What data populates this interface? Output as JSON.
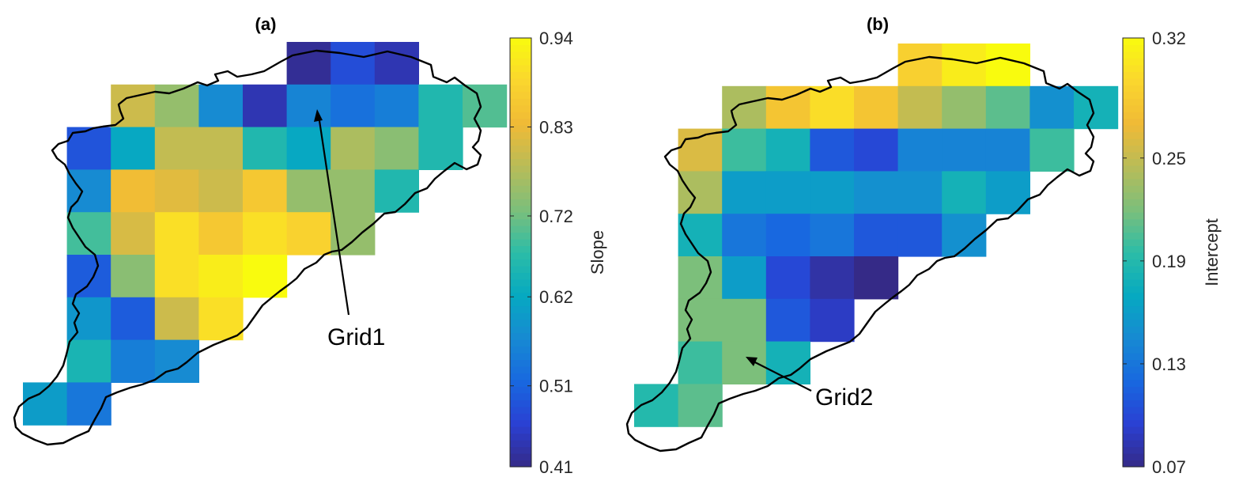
{
  "chart_data": [
    {
      "type": "heatmap",
      "title": "(a)",
      "colorbar": {
        "label": "Slope",
        "ticks": [
          "0.41",
          "0.51",
          "0.62",
          "0.72",
          "0.83",
          "0.94"
        ],
        "range": [
          0.41,
          0.94
        ]
      },
      "colormap": "parula",
      "annotation": {
        "text": "Grid1",
        "target_cell": [
          1,
          6
        ]
      },
      "cells": [
        {
          "row": 0,
          "col": 6,
          "value": 0.42
        },
        {
          "row": 0,
          "col": 7,
          "value": 0.48
        },
        {
          "row": 0,
          "col": 8,
          "value": 0.44
        },
        {
          "row": 1,
          "col": 2,
          "value": 0.8
        },
        {
          "row": 1,
          "col": 3,
          "value": 0.75
        },
        {
          "row": 1,
          "col": 4,
          "value": 0.57
        },
        {
          "row": 1,
          "col": 5,
          "value": 0.44
        },
        {
          "row": 1,
          "col": 6,
          "value": 0.56
        },
        {
          "row": 1,
          "col": 7,
          "value": 0.53
        },
        {
          "row": 1,
          "col": 8,
          "value": 0.55
        },
        {
          "row": 1,
          "col": 9,
          "value": 0.66
        },
        {
          "row": 1,
          "col": 10,
          "value": 0.7
        },
        {
          "row": 2,
          "col": 1,
          "value": 0.49
        },
        {
          "row": 2,
          "col": 2,
          "value": 0.62
        },
        {
          "row": 2,
          "col": 3,
          "value": 0.79
        },
        {
          "row": 2,
          "col": 4,
          "value": 0.79
        },
        {
          "row": 2,
          "col": 5,
          "value": 0.66
        },
        {
          "row": 2,
          "col": 6,
          "value": 0.62
        },
        {
          "row": 2,
          "col": 7,
          "value": 0.77
        },
        {
          "row": 2,
          "col": 8,
          "value": 0.74
        },
        {
          "row": 2,
          "col": 9,
          "value": 0.66
        },
        {
          "row": 3,
          "col": 1,
          "value": 0.57
        },
        {
          "row": 3,
          "col": 2,
          "value": 0.84
        },
        {
          "row": 3,
          "col": 3,
          "value": 0.82
        },
        {
          "row": 3,
          "col": 4,
          "value": 0.8
        },
        {
          "row": 3,
          "col": 5,
          "value": 0.86
        },
        {
          "row": 3,
          "col": 6,
          "value": 0.75
        },
        {
          "row": 3,
          "col": 7,
          "value": 0.75
        },
        {
          "row": 3,
          "col": 8,
          "value": 0.66
        },
        {
          "row": 4,
          "col": 1,
          "value": 0.69
        },
        {
          "row": 4,
          "col": 2,
          "value": 0.81
        },
        {
          "row": 4,
          "col": 3,
          "value": 0.9
        },
        {
          "row": 4,
          "col": 4,
          "value": 0.86
        },
        {
          "row": 4,
          "col": 5,
          "value": 0.9
        },
        {
          "row": 4,
          "col": 6,
          "value": 0.88
        },
        {
          "row": 4,
          "col": 7,
          "value": 0.75
        },
        {
          "row": 5,
          "col": 1,
          "value": 0.5
        },
        {
          "row": 5,
          "col": 2,
          "value": 0.74
        },
        {
          "row": 5,
          "col": 3,
          "value": 0.9
        },
        {
          "row": 5,
          "col": 4,
          "value": 0.92
        },
        {
          "row": 5,
          "col": 5,
          "value": 0.94
        },
        {
          "row": 6,
          "col": 1,
          "value": 0.59
        },
        {
          "row": 6,
          "col": 2,
          "value": 0.5
        },
        {
          "row": 6,
          "col": 3,
          "value": 0.8
        },
        {
          "row": 6,
          "col": 4,
          "value": 0.9
        },
        {
          "row": 7,
          "col": 1,
          "value": 0.65
        },
        {
          "row": 7,
          "col": 2,
          "value": 0.55
        },
        {
          "row": 7,
          "col": 3,
          "value": 0.57
        },
        {
          "row": 8,
          "col": 0,
          "value": 0.6
        },
        {
          "row": 8,
          "col": 1,
          "value": 0.54
        }
      ]
    },
    {
      "type": "heatmap",
      "title": "(b)",
      "colorbar": {
        "label": "Intercept",
        "ticks": [
          "0.07",
          "0.13",
          "0.19",
          "0.25",
          "0.32"
        ],
        "range": [
          0.07,
          0.32
        ]
      },
      "colormap": "parula",
      "annotation": {
        "text": "Grid2",
        "target_cell": [
          7,
          2
        ]
      },
      "cells": [
        {
          "row": 0,
          "col": 6,
          "value": 0.29
        },
        {
          "row": 0,
          "col": 7,
          "value": 0.31
        },
        {
          "row": 0,
          "col": 8,
          "value": 0.32
        },
        {
          "row": 1,
          "col": 2,
          "value": 0.24
        },
        {
          "row": 1,
          "col": 3,
          "value": 0.28
        },
        {
          "row": 1,
          "col": 4,
          "value": 0.3
        },
        {
          "row": 1,
          "col": 5,
          "value": 0.28
        },
        {
          "row": 1,
          "col": 6,
          "value": 0.25
        },
        {
          "row": 1,
          "col": 7,
          "value": 0.23
        },
        {
          "row": 1,
          "col": 8,
          "value": 0.21
        },
        {
          "row": 1,
          "col": 9,
          "value": 0.15
        },
        {
          "row": 1,
          "col": 10,
          "value": 0.18
        },
        {
          "row": 2,
          "col": 1,
          "value": 0.26
        },
        {
          "row": 2,
          "col": 2,
          "value": 0.2
        },
        {
          "row": 2,
          "col": 3,
          "value": 0.18
        },
        {
          "row": 2,
          "col": 4,
          "value": 0.11
        },
        {
          "row": 2,
          "col": 5,
          "value": 0.1
        },
        {
          "row": 2,
          "col": 6,
          "value": 0.14
        },
        {
          "row": 2,
          "col": 7,
          "value": 0.14
        },
        {
          "row": 2,
          "col": 8,
          "value": 0.14
        },
        {
          "row": 2,
          "col": 9,
          "value": 0.2
        },
        {
          "row": 3,
          "col": 1,
          "value": 0.24
        },
        {
          "row": 3,
          "col": 2,
          "value": 0.16
        },
        {
          "row": 3,
          "col": 3,
          "value": 0.16
        },
        {
          "row": 3,
          "col": 4,
          "value": 0.16
        },
        {
          "row": 3,
          "col": 5,
          "value": 0.15
        },
        {
          "row": 3,
          "col": 6,
          "value": 0.15
        },
        {
          "row": 3,
          "col": 7,
          "value": 0.18
        },
        {
          "row": 3,
          "col": 8,
          "value": 0.16
        },
        {
          "row": 4,
          "col": 1,
          "value": 0.18
        },
        {
          "row": 4,
          "col": 2,
          "value": 0.13
        },
        {
          "row": 4,
          "col": 3,
          "value": 0.12
        },
        {
          "row": 4,
          "col": 4,
          "value": 0.13
        },
        {
          "row": 4,
          "col": 5,
          "value": 0.11
        },
        {
          "row": 4,
          "col": 6,
          "value": 0.11
        },
        {
          "row": 4,
          "col": 7,
          "value": 0.15
        },
        {
          "row": 5,
          "col": 1,
          "value": 0.22
        },
        {
          "row": 5,
          "col": 2,
          "value": 0.16
        },
        {
          "row": 5,
          "col": 3,
          "value": 0.1
        },
        {
          "row": 5,
          "col": 4,
          "value": 0.08
        },
        {
          "row": 5,
          "col": 5,
          "value": 0.07
        },
        {
          "row": 6,
          "col": 1,
          "value": 0.22
        },
        {
          "row": 6,
          "col": 2,
          "value": 0.22
        },
        {
          "row": 6,
          "col": 3,
          "value": 0.11
        },
        {
          "row": 6,
          "col": 4,
          "value": 0.09
        },
        {
          "row": 7,
          "col": 1,
          "value": 0.2
        },
        {
          "row": 7,
          "col": 2,
          "value": 0.22
        },
        {
          "row": 7,
          "col": 3,
          "value": 0.18
        },
        {
          "row": 8,
          "col": 0,
          "value": 0.19
        },
        {
          "row": 8,
          "col": 1,
          "value": 0.21
        }
      ]
    }
  ]
}
